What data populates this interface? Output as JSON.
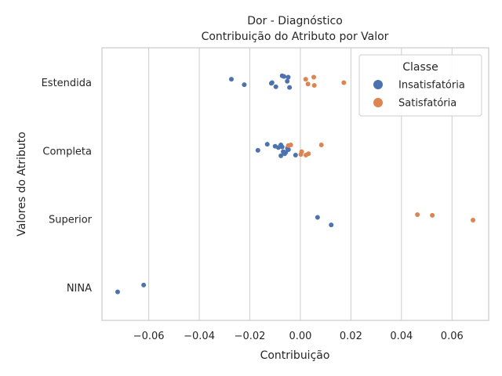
{
  "chart_data": {
    "type": "scatter",
    "title_line1": "Dor - Diagnóstico",
    "title_line2": "Contribuição do Atributo por Valor",
    "xlabel": "Contribuição",
    "ylabel": "Valores do Atributo",
    "xlim": [
      -0.0785,
      0.0745
    ],
    "xticks": [
      -0.06,
      -0.04,
      -0.02,
      0.0,
      0.02,
      0.04,
      0.06
    ],
    "xtick_labels": [
      "−0.06",
      "−0.04",
      "−0.02",
      "0.00",
      "0.02",
      "0.04",
      "0.06"
    ],
    "categories": [
      "Estendida",
      "Completa",
      "Superior",
      "NINA"
    ],
    "grid": true,
    "legend": {
      "title": "Classe",
      "placement": "top-right"
    },
    "series": [
      {
        "name": "Insatisfatória",
        "color": "#4c72b0",
        "points": [
          {
            "category": "Estendida",
            "x": -0.0273,
            "jitter": -0.05
          },
          {
            "category": "Estendida",
            "x": -0.0222,
            "jitter": 0.03
          },
          {
            "category": "Estendida",
            "x": -0.0115,
            "jitter": 0.01
          },
          {
            "category": "Estendida",
            "x": -0.0112,
            "jitter": 0.0
          },
          {
            "category": "Estendida",
            "x": -0.0097,
            "jitter": 0.06
          },
          {
            "category": "Estendida",
            "x": -0.0072,
            "jitter": -0.1
          },
          {
            "category": "Estendida",
            "x": -0.0065,
            "jitter": -0.09
          },
          {
            "category": "Estendida",
            "x": -0.0052,
            "jitter": -0.02
          },
          {
            "category": "Estendida",
            "x": -0.0048,
            "jitter": -0.08
          },
          {
            "category": "Estendida",
            "x": -0.0043,
            "jitter": 0.07
          },
          {
            "category": "Completa",
            "x": -0.0168,
            "jitter": -0.01
          },
          {
            "category": "Completa",
            "x": -0.0131,
            "jitter": -0.1
          },
          {
            "category": "Completa",
            "x": -0.01,
            "jitter": -0.07
          },
          {
            "category": "Completa",
            "x": -0.0087,
            "jitter": -0.05
          },
          {
            "category": "Completa",
            "x": -0.0077,
            "jitter": -0.09
          },
          {
            "category": "Completa",
            "x": -0.0072,
            "jitter": -0.06
          },
          {
            "category": "Completa",
            "x": -0.0068,
            "jitter": 0.01
          },
          {
            "category": "Completa",
            "x": -0.0062,
            "jitter": 0.04
          },
          {
            "category": "Completa",
            "x": -0.0058,
            "jitter": 0.02
          },
          {
            "category": "Completa",
            "x": -0.0051,
            "jitter": -0.04
          },
          {
            "category": "Completa",
            "x": -0.0047,
            "jitter": -0.02
          },
          {
            "category": "Completa",
            "x": -0.0077,
            "jitter": 0.07
          },
          {
            "category": "Completa",
            "x": -0.0019,
            "jitter": 0.06
          },
          {
            "category": "Superior",
            "x": 0.0068,
            "jitter": -0.03
          },
          {
            "category": "Superior",
            "x": 0.0122,
            "jitter": 0.08
          },
          {
            "category": "NINA",
            "x": -0.062,
            "jitter": -0.04
          },
          {
            "category": "NINA",
            "x": -0.0723,
            "jitter": 0.06
          }
        ]
      },
      {
        "name": "Satisfatória",
        "color": "#dd8452",
        "points": [
          {
            "category": "Estendida",
            "x": 0.0021,
            "jitter": -0.05
          },
          {
            "category": "Estendida",
            "x": 0.003,
            "jitter": 0.02
          },
          {
            "category": "Estendida",
            "x": 0.0053,
            "jitter": -0.08
          },
          {
            "category": "Estendida",
            "x": 0.0055,
            "jitter": 0.04
          },
          {
            "category": "Estendida",
            "x": 0.0172,
            "jitter": 0.0
          },
          {
            "category": "Completa",
            "x": -0.0048,
            "jitter": -0.08
          },
          {
            "category": "Completa",
            "x": -0.0038,
            "jitter": -0.09
          },
          {
            "category": "Completa",
            "x": 0.0005,
            "jitter": 0.01
          },
          {
            "category": "Completa",
            "x": 0.0002,
            "jitter": 0.05
          },
          {
            "category": "Completa",
            "x": 0.0022,
            "jitter": 0.06
          },
          {
            "category": "Completa",
            "x": 0.0032,
            "jitter": 0.04
          },
          {
            "category": "Completa",
            "x": 0.0083,
            "jitter": -0.09
          },
          {
            "category": "Superior",
            "x": 0.0463,
            "jitter": -0.07
          },
          {
            "category": "Superior",
            "x": 0.0522,
            "jitter": -0.06
          },
          {
            "category": "Superior",
            "x": 0.0683,
            "jitter": 0.01
          }
        ]
      }
    ]
  }
}
